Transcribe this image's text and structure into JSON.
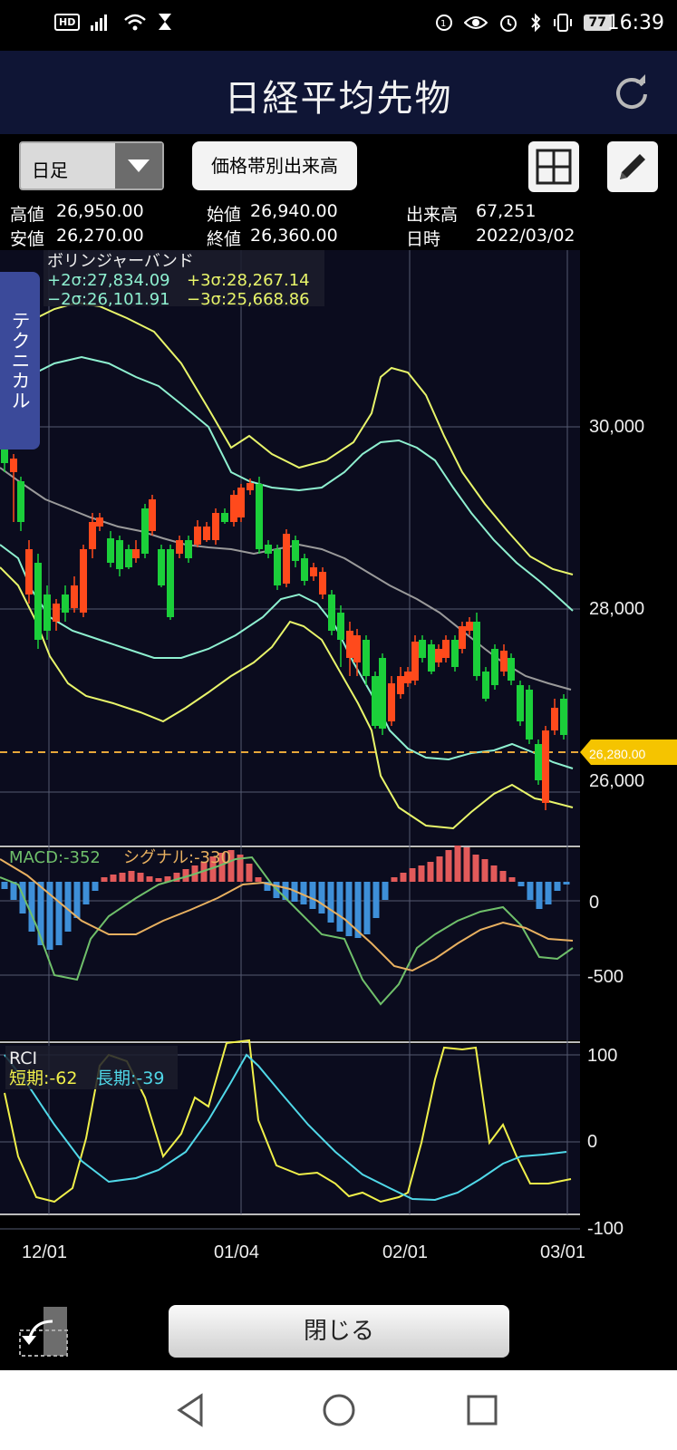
{
  "status_bar": {
    "hd": "HD",
    "battery": "77",
    "time": "16:39"
  },
  "header": {
    "title": "日経平均先物"
  },
  "toolbar": {
    "period": "日足",
    "volume_button": "価格帯別出来高"
  },
  "quote": {
    "high_label": "高値",
    "high": "26,950.00",
    "open_label": "始値",
    "open": "26,940.00",
    "volume_label": "出来高",
    "volume": "67,251",
    "low_label": "安値",
    "low": "26,270.00",
    "close_label": "終値",
    "close": "26,360.00",
    "date_label": "日時",
    "date": "2022/03/02"
  },
  "technical_tab": "テクニカル",
  "bollinger": {
    "title": "ボリンジャーバンド",
    "plus2": "+2σ:27,834.09",
    "plus3": "+3σ:28,267.14",
    "minus2": "−2σ:26,101.91",
    "minus3": "−3σ:25,668.86"
  },
  "price_axis": [
    "30,000",
    "28,000",
    "26,000"
  ],
  "current_price": "26,280.00",
  "macd": {
    "label": "MACD:-352",
    "signal": "シグナル:-330",
    "axis": [
      "0",
      "-500"
    ]
  },
  "rci": {
    "label": "RCI",
    "short": "短期:-62",
    "long": "長期:-39",
    "axis": [
      "100",
      "0",
      "-100"
    ]
  },
  "date_axis": [
    "12/01",
    "01/04",
    "02/01",
    "03/01"
  ],
  "close_button": "閉じる",
  "colors": {
    "header_bg": "#0f1535",
    "chart_bg": "#0b0c1e",
    "up_candle": "#ff4a1c",
    "down_candle": "#1bcf3a",
    "band_outer": "#e8f56a",
    "band_inner": "#8ef0d0",
    "sma": "#9a9a9a",
    "macd_line": "#6fbf6a",
    "signal_line": "#e8b060",
    "hist_pos": "#e25a5a",
    "hist_neg": "#3e8fd8",
    "rci_short": "#f0f04a",
    "rci_long": "#50d8e8",
    "price_tag": "#f5c400"
  }
}
